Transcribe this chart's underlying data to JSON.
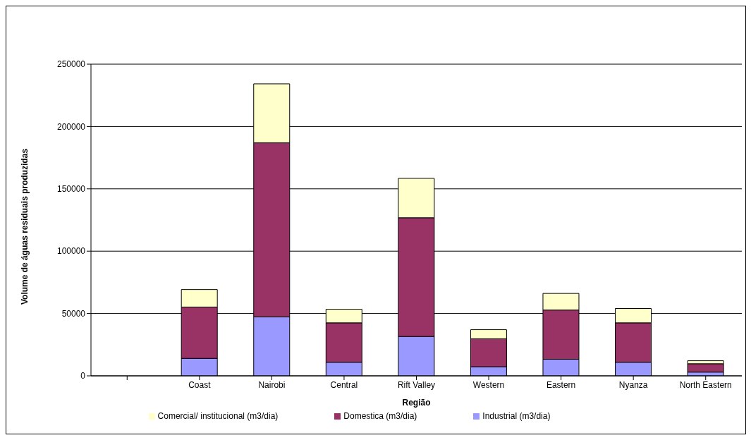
{
  "chart_data": {
    "type": "bar",
    "stacked": true,
    "xlabel": "Região",
    "ylabel": "Volume de águas residuais produzidas",
    "categories": [
      null,
      "Coast",
      "Nairobi",
      "Central",
      "Rift Valley",
      "Western",
      "Eastern",
      "Nyanza",
      "North Eastern"
    ],
    "series": [
      {
        "name": "Industrial (m3/dia)",
        "color": "#9999ff",
        "values": [
          null,
          14000,
          47300,
          10900,
          31600,
          7300,
          13300,
          10900,
          3000
        ]
      },
      {
        "name": "Domestica (m3/dia)",
        "color": "#993366",
        "values": [
          null,
          41200,
          139600,
          31600,
          95200,
          22400,
          39500,
          31600,
          6700
        ]
      },
      {
        "name": "Comercial/ institucional (m3/dia)",
        "color": "#ffffcc",
        "values": [
          null,
          14000,
          47300,
          10900,
          31600,
          7300,
          13300,
          11500,
          2400
        ]
      }
    ],
    "ylim": [
      0,
      250000
    ],
    "yticks": [
      0,
      50000,
      100000,
      150000,
      200000,
      250000
    ],
    "grid": "y",
    "legend": "bottom"
  }
}
